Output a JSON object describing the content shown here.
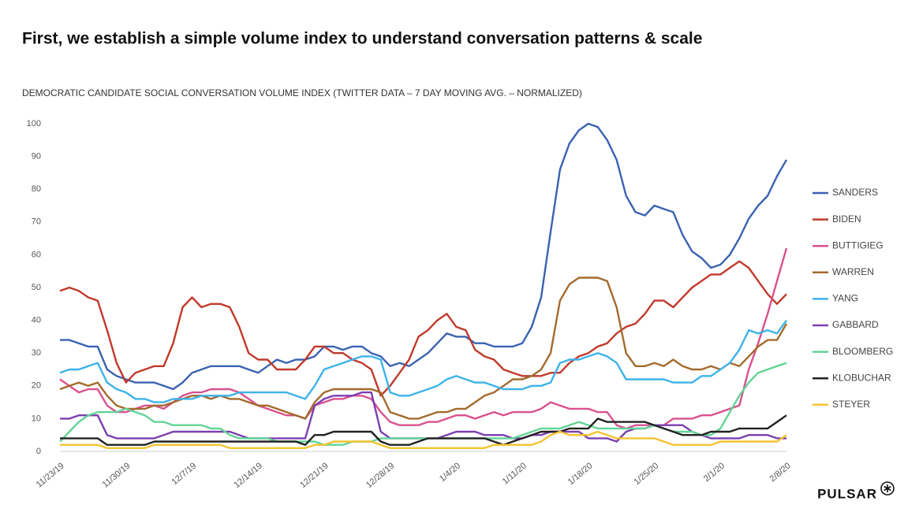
{
  "brand": "PULSAR",
  "chart_data": {
    "type": "line",
    "title": "First, we establish a simple volume index to understand conversation patterns & scale",
    "subtitle": "DEMOCRATIC CANDIDATE SOCIAL CONVERSATION VOLUME INDEX (TWITTER DATA – 7 DAY MOVING AVG. – NORMALIZED)",
    "categories": [
      "11/23/19",
      null,
      null,
      null,
      null,
      null,
      null,
      "11/30/19",
      null,
      null,
      null,
      null,
      null,
      null,
      "12/7/19",
      null,
      null,
      null,
      null,
      null,
      null,
      "12/14/19",
      null,
      null,
      null,
      null,
      null,
      null,
      "12/21/19",
      null,
      null,
      null,
      null,
      null,
      null,
      "12/28/19",
      null,
      null,
      null,
      null,
      null,
      null,
      "1/4/20",
      null,
      null,
      null,
      null,
      null,
      null,
      "1/11/20",
      null,
      null,
      null,
      null,
      null,
      null,
      "1/18/20",
      null,
      null,
      null,
      null,
      null,
      null,
      "1/25/20",
      null,
      null,
      null,
      null,
      null,
      null,
      "2/1/20",
      null,
      null,
      null,
      null,
      null,
      null,
      "2/8/20"
    ],
    "ylim": [
      0,
      100
    ],
    "yticks": [
      0,
      10,
      20,
      30,
      40,
      50,
      60,
      70,
      80,
      90,
      100
    ],
    "grid": false,
    "legend": "right",
    "series": [
      {
        "name": "SANDERS",
        "color": "#3a62b3",
        "values": [
          34,
          34,
          33,
          32,
          32,
          25,
          23,
          22,
          21,
          21,
          21,
          20,
          19,
          21,
          24,
          25,
          26,
          26,
          26,
          26,
          25,
          24,
          26,
          28,
          27,
          28,
          28,
          29,
          32,
          32,
          31,
          32,
          32,
          30,
          29,
          26,
          27,
          26,
          28,
          30,
          33,
          36,
          35,
          35,
          33,
          33,
          32,
          32,
          32,
          33,
          38,
          47,
          67,
          86,
          94,
          98,
          100,
          99,
          95,
          89,
          78,
          73,
          72,
          75,
          74,
          73,
          66,
          61,
          59,
          56,
          57,
          60,
          65,
          71,
          75,
          78,
          84,
          89
        ]
      },
      {
        "name": "BIDEN",
        "color": "#c0392b",
        "values": [
          49,
          50,
          49,
          47,
          46,
          37,
          27,
          21,
          24,
          25,
          26,
          26,
          33,
          44,
          47,
          44,
          45,
          45,
          44,
          38,
          30,
          28,
          28,
          25,
          25,
          25,
          28,
          32,
          32,
          30,
          30,
          28,
          27,
          25,
          17,
          20,
          24,
          28,
          35,
          37,
          40,
          42,
          38,
          37,
          31,
          29,
          28,
          25,
          24,
          23,
          23,
          23,
          24,
          24,
          27,
          29,
          30,
          32,
          33,
          36,
          38,
          39,
          42,
          46,
          46,
          44,
          47,
          50,
          52,
          54,
          54,
          56,
          58,
          56,
          52,
          48,
          45,
          48
        ]
      },
      {
        "name": "BUTTIGIEG",
        "color": "#d9518f",
        "values": [
          22,
          20,
          18,
          19,
          19,
          14,
          12,
          12,
          13,
          14,
          14,
          13,
          15,
          17,
          18,
          18,
          19,
          19,
          19,
          18,
          16,
          14,
          13,
          12,
          11,
          11,
          10,
          14,
          15,
          16,
          16,
          17,
          17,
          16,
          12,
          9,
          8,
          8,
          8,
          9,
          9,
          10,
          11,
          11,
          10,
          11,
          12,
          11,
          12,
          12,
          12,
          13,
          15,
          14,
          13,
          13,
          13,
          12,
          12,
          8,
          7,
          8,
          8,
          8,
          8,
          10,
          10,
          10,
          11,
          11,
          12,
          13,
          14,
          25,
          33,
          42,
          52,
          62
        ]
      },
      {
        "name": "WARREN",
        "color": "#a36a2c",
        "values": [
          19,
          20,
          21,
          20,
          21,
          17,
          14,
          13,
          13,
          13,
          14,
          14,
          15,
          16,
          17,
          17,
          16,
          17,
          16,
          16,
          15,
          14,
          14,
          13,
          12,
          11,
          10,
          15,
          18,
          19,
          19,
          19,
          19,
          19,
          18,
          12,
          11,
          10,
          10,
          11,
          12,
          12,
          13,
          13,
          15,
          17,
          18,
          20,
          22,
          22,
          23,
          25,
          30,
          46,
          51,
          53,
          53,
          53,
          52,
          44,
          30,
          26,
          26,
          27,
          26,
          28,
          26,
          25,
          25,
          26,
          25,
          27,
          26,
          29,
          32,
          34,
          34,
          39
        ]
      },
      {
        "name": "YANG",
        "color": "#3db3ea",
        "values": [
          24,
          25,
          25,
          26,
          27,
          21,
          19,
          18,
          16,
          16,
          15,
          15,
          16,
          16,
          16,
          17,
          17,
          17,
          17,
          18,
          18,
          18,
          18,
          18,
          18,
          17,
          16,
          20,
          25,
          26,
          27,
          28,
          29,
          29,
          28,
          18,
          17,
          17,
          18,
          19,
          20,
          22,
          23,
          22,
          21,
          21,
          20,
          19,
          19,
          19,
          20,
          20,
          21,
          27,
          28,
          28,
          29,
          30,
          29,
          27,
          22,
          22,
          22,
          22,
          22,
          21,
          21,
          21,
          23,
          23,
          25,
          27,
          31,
          37,
          36,
          37,
          36,
          40
        ]
      },
      {
        "name": "GABBARD",
        "color": "#7b3fb0",
        "values": [
          10,
          10,
          11,
          11,
          11,
          5,
          4,
          4,
          4,
          4,
          4,
          5,
          6,
          6,
          6,
          6,
          6,
          6,
          6,
          5,
          4,
          4,
          4,
          4,
          4,
          4,
          4,
          14,
          16,
          17,
          17,
          17,
          18,
          18,
          6,
          4,
          4,
          4,
          4,
          4,
          4,
          5,
          6,
          6,
          6,
          5,
          5,
          5,
          4,
          4,
          5,
          5,
          6,
          6,
          6,
          6,
          4,
          4,
          4,
          3,
          6,
          7,
          7,
          8,
          8,
          8,
          8,
          6,
          5,
          4,
          4,
          4,
          4,
          5,
          5,
          5,
          4,
          4
        ]
      },
      {
        "name": "BLOOMBERG",
        "color": "#62d497",
        "values": [
          3,
          6,
          9,
          11,
          12,
          12,
          12,
          13,
          12,
          11,
          9,
          9,
          8,
          8,
          8,
          8,
          7,
          7,
          5,
          4,
          4,
          4,
          4,
          3,
          3,
          3,
          3,
          3,
          2,
          2,
          2,
          3,
          3,
          3,
          4,
          4,
          4,
          4,
          4,
          4,
          4,
          4,
          4,
          4,
          4,
          4,
          4,
          4,
          4,
          5,
          6,
          7,
          7,
          7,
          8,
          9,
          8,
          7,
          7,
          7,
          7,
          7,
          7,
          8,
          7,
          6,
          6,
          6,
          5,
          5,
          7,
          12,
          17,
          21,
          24,
          25,
          26,
          27
        ]
      },
      {
        "name": "KLOBUCHAR",
        "color": "#222222",
        "values": [
          4,
          4,
          4,
          4,
          4,
          2,
          2,
          2,
          2,
          2,
          3,
          3,
          3,
          3,
          3,
          3,
          3,
          3,
          3,
          3,
          3,
          3,
          3,
          3,
          3,
          3,
          2,
          5,
          5,
          6,
          6,
          6,
          6,
          6,
          3,
          2,
          2,
          2,
          3,
          4,
          4,
          4,
          4,
          4,
          4,
          4,
          3,
          2,
          3,
          4,
          5,
          6,
          6,
          6,
          7,
          7,
          7,
          10,
          9,
          9,
          9,
          9,
          9,
          8,
          7,
          6,
          5,
          5,
          5,
          6,
          6,
          6,
          7,
          7,
          7,
          7,
          9,
          11
        ]
      },
      {
        "name": "STEYER",
        "color": "#f4c32f",
        "values": [
          2,
          2,
          2,
          2,
          2,
          1,
          1,
          1,
          1,
          1,
          2,
          2,
          2,
          2,
          2,
          2,
          2,
          2,
          1,
          1,
          1,
          1,
          1,
          1,
          1,
          1,
          1,
          2,
          2,
          3,
          3,
          3,
          3,
          3,
          2,
          1,
          1,
          1,
          1,
          1,
          1,
          1,
          1,
          1,
          1,
          1,
          2,
          2,
          2,
          2,
          2,
          3,
          5,
          6,
          5,
          5,
          5,
          6,
          5,
          4,
          4,
          4,
          4,
          4,
          3,
          2,
          2,
          2,
          2,
          2,
          3,
          3,
          3,
          3,
          3,
          3,
          3,
          5
        ]
      }
    ]
  }
}
